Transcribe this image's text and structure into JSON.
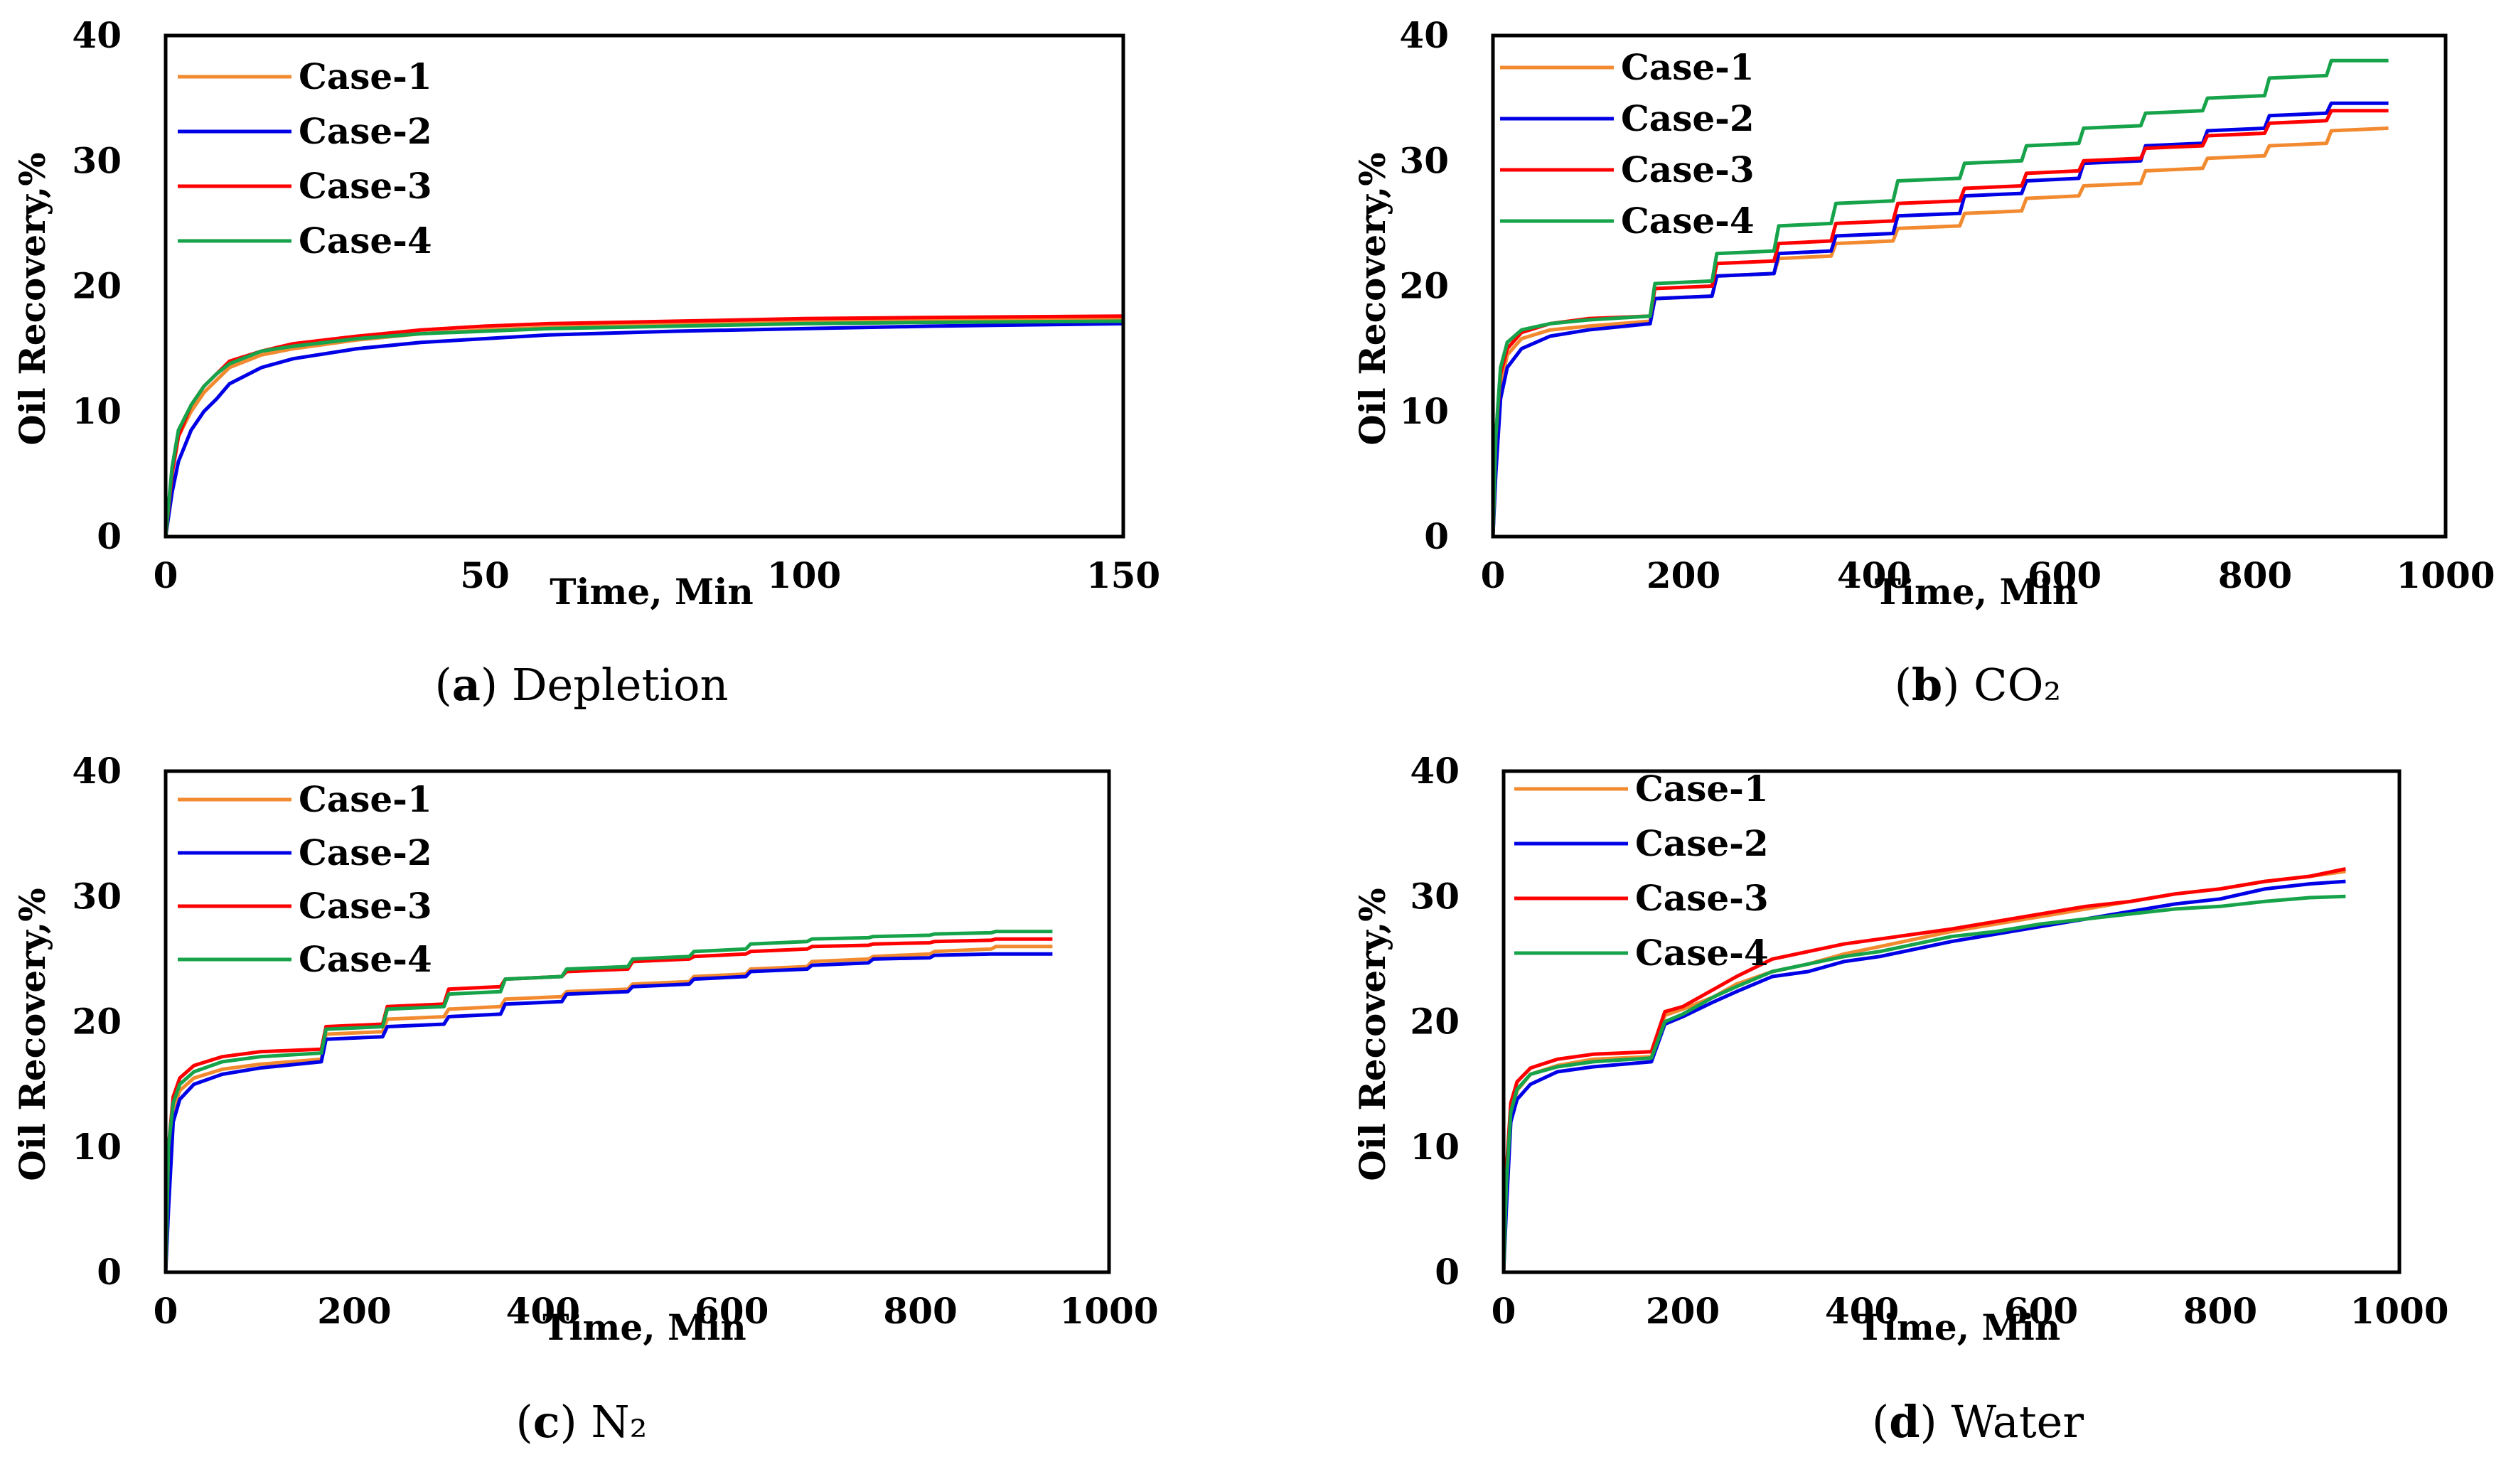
{
  "figure": {
    "colors": {
      "case1": "#f28a30",
      "case2": "#0000e6",
      "case3": "#ff0000",
      "case4": "#16a34a"
    }
  },
  "chart_data": [
    {
      "id": "a",
      "type": "line",
      "caption": {
        "letter": "a",
        "text": "Depletion"
      },
      "xlabel": "Time, Min",
      "ylabel": "Oil Recovery,%",
      "xlim": [
        0,
        150
      ],
      "ylim": [
        0,
        40
      ],
      "xticks": [
        0,
        50,
        100,
        150
      ],
      "yticks": [
        0,
        10,
        20,
        30,
        40
      ],
      "legend": "top-left",
      "series": [
        {
          "name": "Case-1",
          "x": [
            0,
            1,
            2,
            4,
            6,
            8,
            10,
            15,
            20,
            30,
            40,
            50,
            60,
            80,
            100,
            120,
            150
          ],
          "y": [
            0,
            5,
            8,
            10,
            11.5,
            12.5,
            13.5,
            14.5,
            15,
            15.7,
            16.2,
            16.5,
            16.7,
            17,
            17.2,
            17.3,
            17.4
          ]
        },
        {
          "name": "Case-2",
          "x": [
            0,
            1,
            2,
            4,
            6,
            8,
            10,
            15,
            20,
            30,
            40,
            50,
            60,
            80,
            100,
            120,
            150
          ],
          "y": [
            0,
            3.5,
            6,
            8.5,
            10,
            11,
            12.2,
            13.5,
            14.2,
            15,
            15.5,
            15.8,
            16.1,
            16.4,
            16.6,
            16.8,
            17
          ]
        },
        {
          "name": "Case-3",
          "x": [
            0,
            1,
            2,
            4,
            6,
            8,
            10,
            15,
            20,
            30,
            40,
            50,
            60,
            80,
            100,
            120,
            150
          ],
          "y": [
            0,
            5,
            8,
            10.5,
            12,
            13,
            14,
            14.8,
            15.4,
            16,
            16.5,
            16.8,
            17,
            17.2,
            17.4,
            17.5,
            17.6
          ]
        },
        {
          "name": "Case-4",
          "x": [
            0,
            1,
            2,
            4,
            6,
            8,
            10,
            15,
            20,
            30,
            40,
            50,
            60,
            80,
            100,
            120,
            150
          ],
          "y": [
            0,
            5.5,
            8.5,
            10.5,
            12,
            13,
            13.8,
            14.8,
            15.2,
            15.8,
            16.2,
            16.4,
            16.6,
            16.8,
            17,
            17.1,
            17.2
          ]
        }
      ]
    },
    {
      "id": "b",
      "type": "line",
      "caption": {
        "letter": "b",
        "text": "CO₂"
      },
      "xlabel": "Time, Min",
      "ylabel": "Oil Recovery,%",
      "xlim": [
        0,
        1000
      ],
      "ylim": [
        0,
        40
      ],
      "xticks": [
        0,
        200,
        400,
        600,
        800,
        1000
      ],
      "yticks": [
        0,
        10,
        20,
        30,
        40
      ],
      "legend": "top-left",
      "series": [
        {
          "name": "Case-1",
          "x": [
            0,
            3,
            8,
            15,
            30,
            60,
            100,
            165,
            170,
            230,
            235,
            295,
            300,
            355,
            360,
            420,
            425,
            490,
            495,
            555,
            560,
            615,
            620,
            680,
            685,
            745,
            750,
            810,
            815,
            875,
            880,
            940
          ],
          "y": [
            0,
            7,
            12,
            14.5,
            15.8,
            16.5,
            16.8,
            17.2,
            19,
            19.2,
            20.8,
            21,
            22.2,
            22.4,
            23.4,
            23.6,
            24.6,
            24.8,
            25.8,
            26,
            27,
            27.2,
            28,
            28.2,
            29.2,
            29.4,
            30.2,
            30.4,
            31.2,
            31.4,
            32.4,
            32.6
          ]
        },
        {
          "name": "Case-2",
          "x": [
            0,
            3,
            8,
            15,
            30,
            60,
            100,
            165,
            170,
            230,
            235,
            295,
            300,
            355,
            360,
            420,
            425,
            490,
            495,
            555,
            560,
            615,
            620,
            680,
            685,
            745,
            750,
            810,
            815,
            875,
            880,
            940
          ],
          "y": [
            0,
            5,
            11,
            13.5,
            15,
            16,
            16.5,
            17,
            19,
            19.2,
            20.8,
            21,
            22.6,
            22.8,
            24,
            24.2,
            25.6,
            25.8,
            27.2,
            27.4,
            28.4,
            28.6,
            29.8,
            30,
            31.2,
            31.4,
            32.4,
            32.6,
            33.6,
            33.8,
            34.6,
            34.6
          ]
        },
        {
          "name": "Case-3",
          "x": [
            0,
            3,
            8,
            15,
            30,
            60,
            100,
            165,
            170,
            230,
            235,
            295,
            300,
            355,
            360,
            420,
            425,
            490,
            495,
            555,
            560,
            615,
            620,
            680,
            685,
            745,
            750,
            810,
            815,
            875,
            880,
            940
          ],
          "y": [
            0,
            8,
            13,
            15,
            16.3,
            17,
            17.4,
            17.6,
            19.8,
            20,
            21.8,
            22,
            23.4,
            23.6,
            25,
            25.2,
            26.6,
            26.8,
            27.8,
            28,
            29,
            29.2,
            30,
            30.2,
            31,
            31.2,
            32,
            32.2,
            33,
            33.2,
            34,
            34
          ]
        },
        {
          "name": "Case-4",
          "x": [
            0,
            3,
            8,
            15,
            30,
            60,
            100,
            165,
            170,
            230,
            235,
            295,
            300,
            355,
            360,
            420,
            425,
            490,
            495,
            555,
            560,
            615,
            620,
            680,
            685,
            745,
            750,
            810,
            815,
            875,
            880,
            940
          ],
          "y": [
            0,
            8,
            13.5,
            15.5,
            16.5,
            17,
            17.3,
            17.6,
            20.2,
            20.4,
            22.6,
            22.8,
            24.8,
            25,
            26.6,
            26.8,
            28.4,
            28.6,
            29.8,
            30,
            31.2,
            31.4,
            32.6,
            32.8,
            33.8,
            34,
            35,
            35.2,
            36.6,
            36.8,
            38,
            38
          ]
        }
      ]
    },
    {
      "id": "c",
      "type": "line",
      "caption": {
        "letter": "c",
        "text": "N₂"
      },
      "xlabel": "Time, Min",
      "ylabel": "Oil Recovery,%",
      "xlim": [
        0,
        1000
      ],
      "ylim": [
        0,
        40
      ],
      "xticks": [
        0,
        200,
        400,
        600,
        800,
        1000
      ],
      "yticks": [
        0,
        10,
        20,
        30,
        40
      ],
      "legend": "top-left",
      "series": [
        {
          "name": "Case-1",
          "x": [
            0,
            3,
            8,
            15,
            30,
            60,
            100,
            165,
            170,
            230,
            235,
            295,
            300,
            355,
            360,
            420,
            425,
            490,
            495,
            555,
            560,
            615,
            620,
            680,
            685,
            745,
            750,
            810,
            815,
            875,
            880,
            940
          ],
          "y": [
            0,
            9,
            13,
            14.5,
            15.5,
            16.2,
            16.6,
            17,
            19,
            19.2,
            20.2,
            20.4,
            21,
            21.2,
            21.8,
            22,
            22.4,
            22.6,
            23,
            23.2,
            23.6,
            23.8,
            24.2,
            24.4,
            24.8,
            25,
            25.2,
            25.4,
            25.6,
            25.8,
            26,
            26
          ]
        },
        {
          "name": "Case-2",
          "x": [
            0,
            3,
            8,
            15,
            30,
            60,
            100,
            165,
            170,
            230,
            235,
            295,
            300,
            355,
            360,
            420,
            425,
            490,
            495,
            555,
            560,
            615,
            620,
            680,
            685,
            745,
            750,
            810,
            815,
            875,
            880,
            940
          ],
          "y": [
            0,
            5,
            12,
            13.8,
            15,
            15.8,
            16.3,
            16.8,
            18.6,
            18.8,
            19.6,
            19.8,
            20.4,
            20.6,
            21.4,
            21.6,
            22.2,
            22.4,
            22.8,
            23,
            23.4,
            23.6,
            24,
            24.2,
            24.5,
            24.7,
            25,
            25.1,
            25.3,
            25.4,
            25.4,
            25.4
          ]
        },
        {
          "name": "Case-3",
          "x": [
            0,
            3,
            8,
            15,
            30,
            60,
            100,
            165,
            170,
            230,
            235,
            295,
            300,
            355,
            360,
            420,
            425,
            490,
            495,
            555,
            560,
            615,
            620,
            680,
            685,
            745,
            750,
            810,
            815,
            875,
            880,
            940
          ],
          "y": [
            0,
            10,
            14,
            15.5,
            16.5,
            17.2,
            17.6,
            17.8,
            19.6,
            19.8,
            21.2,
            21.4,
            22.6,
            22.8,
            23.4,
            23.6,
            24,
            24.2,
            24.8,
            25,
            25.2,
            25.4,
            25.6,
            25.8,
            26,
            26.1,
            26.2,
            26.3,
            26.4,
            26.5,
            26.6,
            26.6
          ]
        },
        {
          "name": "Case-4",
          "x": [
            0,
            3,
            8,
            15,
            30,
            60,
            100,
            165,
            170,
            230,
            235,
            295,
            300,
            355,
            360,
            420,
            425,
            490,
            495,
            555,
            560,
            615,
            620,
            680,
            685,
            745,
            750,
            810,
            815,
            875,
            880,
            940
          ],
          "y": [
            0,
            10,
            13.5,
            15,
            16,
            16.8,
            17.2,
            17.5,
            19.4,
            19.6,
            21,
            21.2,
            22.2,
            22.4,
            23.4,
            23.6,
            24.2,
            24.4,
            25,
            25.2,
            25.6,
            25.8,
            26.2,
            26.4,
            26.6,
            26.7,
            26.8,
            26.9,
            27,
            27.1,
            27.2,
            27.2
          ]
        }
      ]
    },
    {
      "id": "d",
      "type": "line",
      "caption": {
        "letter": "d",
        "text": "Water"
      },
      "xlabel": "Time, Min",
      "ylabel": "Oil Recovery,%",
      "xlim": [
        0,
        1000
      ],
      "ylim": [
        0,
        40
      ],
      "xticks": [
        0,
        200,
        400,
        600,
        800,
        1000
      ],
      "yticks": [
        0,
        10,
        20,
        30,
        40
      ],
      "legend": "top-left",
      "series": [
        {
          "name": "Case-1",
          "x": [
            0,
            3,
            8,
            15,
            30,
            60,
            100,
            165,
            180,
            200,
            235,
            260,
            300,
            340,
            380,
            420,
            460,
            500,
            550,
            600,
            650,
            700,
            750,
            800,
            850,
            900,
            940
          ],
          "y": [
            0,
            7,
            12.5,
            14.5,
            15.8,
            16.5,
            17,
            17.2,
            20.5,
            21,
            22,
            23,
            24,
            24.6,
            25.4,
            26,
            26.6,
            27.2,
            27.8,
            28.4,
            29,
            29.6,
            30.2,
            30.6,
            31.2,
            31.6,
            32
          ]
        },
        {
          "name": "Case-2",
          "x": [
            0,
            3,
            8,
            15,
            30,
            60,
            100,
            165,
            180,
            200,
            235,
            260,
            300,
            340,
            380,
            420,
            460,
            500,
            550,
            600,
            650,
            700,
            750,
            800,
            850,
            900,
            940
          ],
          "y": [
            0,
            5,
            12,
            13.8,
            15,
            16,
            16.4,
            16.8,
            19.8,
            20.4,
            21.6,
            22.4,
            23.6,
            24,
            24.8,
            25.2,
            25.8,
            26.4,
            27,
            27.6,
            28.2,
            28.8,
            29.4,
            29.8,
            30.6,
            31,
            31.2
          ]
        },
        {
          "name": "Case-3",
          "x": [
            0,
            3,
            8,
            15,
            30,
            60,
            100,
            165,
            180,
            200,
            235,
            260,
            300,
            340,
            380,
            420,
            460,
            500,
            550,
            600,
            650,
            700,
            750,
            800,
            850,
            900,
            940
          ],
          "y": [
            0,
            8,
            13.5,
            15.2,
            16.3,
            17,
            17.4,
            17.6,
            20.8,
            21.2,
            22.6,
            23.6,
            25,
            25.6,
            26.2,
            26.6,
            27,
            27.4,
            28,
            28.6,
            29.2,
            29.6,
            30.2,
            30.6,
            31.2,
            31.6,
            32.2
          ]
        },
        {
          "name": "Case-4",
          "x": [
            0,
            3,
            8,
            15,
            30,
            60,
            100,
            165,
            180,
            200,
            235,
            260,
            300,
            340,
            380,
            420,
            460,
            500,
            550,
            600,
            650,
            700,
            750,
            800,
            850,
            900,
            940
          ],
          "y": [
            0,
            7,
            12.8,
            14.6,
            15.8,
            16.4,
            16.8,
            17.1,
            20,
            20.6,
            22,
            22.8,
            24,
            24.6,
            25.2,
            25.6,
            26.2,
            26.8,
            27.2,
            27.8,
            28.2,
            28.6,
            29,
            29.2,
            29.6,
            29.9,
            30
          ]
        }
      ]
    }
  ]
}
